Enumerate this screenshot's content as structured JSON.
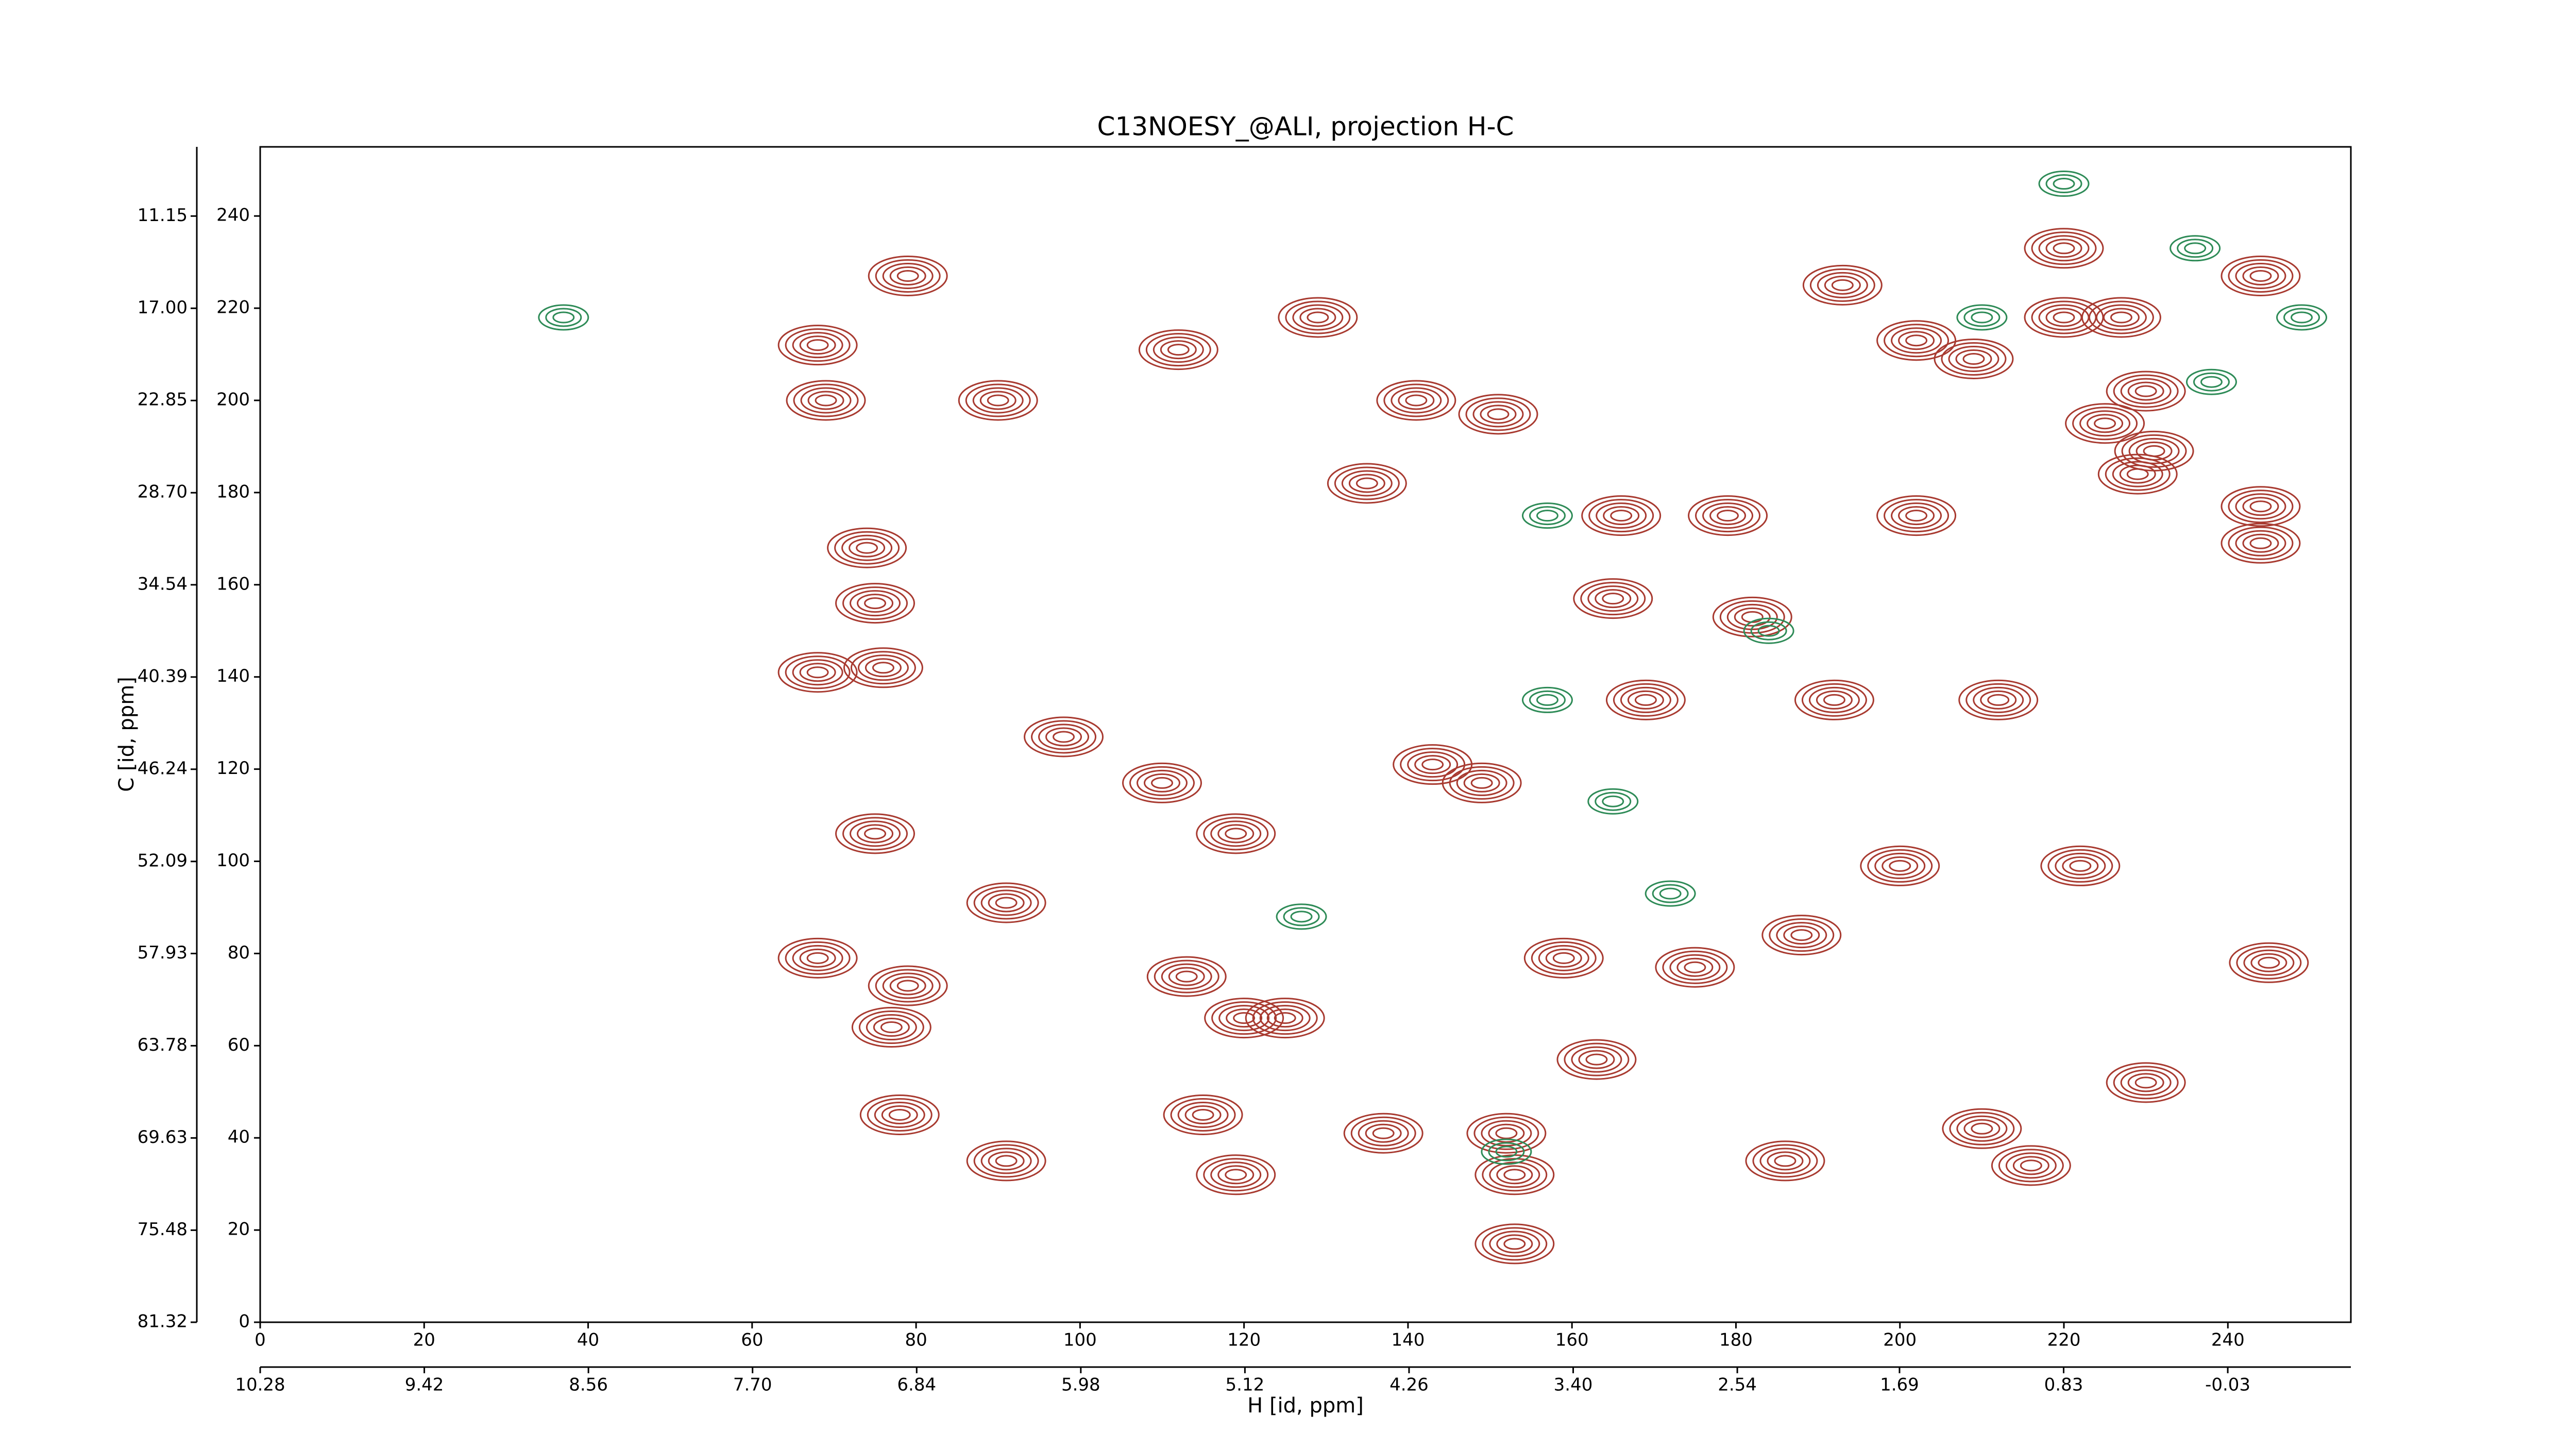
{
  "chart_data": {
    "type": "contour",
    "title": "C13NOESY_@ALI, projection H-C",
    "xlabel": "H [id, ppm]",
    "ylabel": "C [id, ppm]",
    "xlim": [
      0,
      255
    ],
    "ylim": [
      0,
      255
    ],
    "xticks": [
      0,
      20,
      40,
      60,
      80,
      100,
      120,
      140,
      160,
      180,
      200,
      220,
      240
    ],
    "yticks": [
      0,
      20,
      40,
      60,
      80,
      100,
      120,
      140,
      160,
      180,
      200,
      220,
      240
    ],
    "x2lim": [
      10.28,
      -0.675
    ],
    "x2ticks": [
      10.28,
      9.42,
      8.56,
      {
        "value": 7.7,
        "label": "7.70"
      },
      6.84,
      5.98,
      5.12,
      4.26,
      {
        "value": 3.4,
        "label": "3.40"
      },
      2.54,
      1.69,
      0.83,
      -0.03
    ],
    "y2lim": [
      81.32,
      6.76
    ],
    "y2ticks": [
      81.32,
      75.48,
      69.63,
      63.78,
      57.93,
      52.09,
      46.24,
      40.39,
      34.54,
      {
        "value": 28.7,
        "label": "28.70"
      },
      22.85,
      {
        "value": 17,
        "label": "17.00"
      },
      11.15
    ],
    "series": [
      {
        "color": "#a83a30",
        "x": [
          68,
          69,
          79,
          74,
          75,
          68,
          76,
          75,
          91,
          68,
          79,
          77,
          78,
          91,
          90,
          112,
          119,
          113,
          120,
          125,
          115,
          119,
          137,
          143,
          149,
          152,
          153,
          153,
          163,
          159,
          166,
          165,
          169,
          179,
          186,
          193,
          202,
          209,
          220,
          220,
          227,
          230,
          225,
          231,
          229,
          216,
          210,
          230,
          245,
          244,
          244,
          244,
          222,
          200,
          188,
          175,
          141,
          129,
          135,
          151,
          192,
          212,
          202,
          182,
          110,
          98
        ],
        "y": [
          212,
          200,
          227,
          168,
          156,
          141,
          142,
          106,
          91,
          79,
          73,
          64,
          45,
          35,
          200,
          211,
          106,
          75,
          66,
          66,
          45,
          32,
          41,
          121,
          117,
          41,
          32,
          17,
          57,
          79,
          175,
          157,
          135,
          175,
          35,
          225,
          213,
          209,
          233,
          218,
          218,
          202,
          195,
          189,
          184,
          34,
          42,
          52,
          78,
          169,
          177,
          227,
          99,
          99,
          84,
          77,
          200,
          218,
          182,
          197,
          135,
          135,
          175,
          153,
          117,
          127
        ]
      },
      {
        "color": "#2e8b57",
        "x": [
          37,
          157,
          157,
          165,
          172,
          220,
          236,
          238,
          249,
          210,
          184,
          152,
          127
        ],
        "y": [
          218,
          175,
          135,
          113,
          93,
          247,
          233,
          204,
          218,
          218,
          150,
          37,
          88
        ]
      }
    ]
  }
}
